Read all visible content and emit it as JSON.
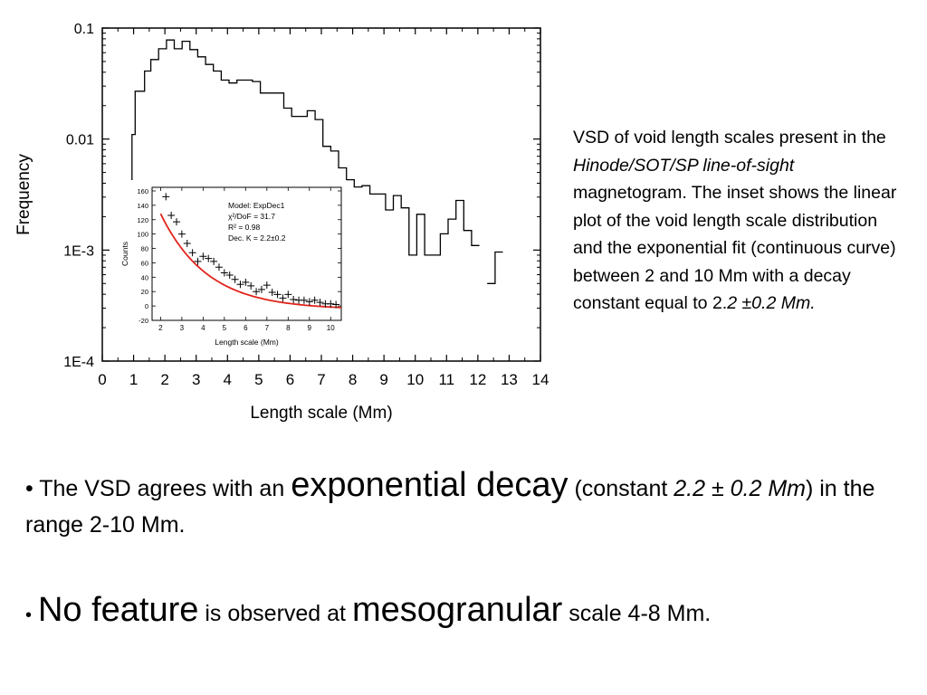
{
  "chart_data": [
    {
      "type": "line",
      "style": "step histogram",
      "xlabel": "Length scale (Mm)",
      "ylabel": "Frequency",
      "y_scale": "log",
      "xlim": [
        0,
        14
      ],
      "ylim": [
        0.0001,
        0.1
      ],
      "x_ticks": [
        "0",
        "1",
        "2",
        "3",
        "4",
        "5",
        "6",
        "7",
        "8",
        "9",
        "10",
        "11",
        "12",
        "13",
        "14"
      ],
      "y_ticks": [
        "0.1",
        "0.01",
        "1E-3",
        "1E-4"
      ],
      "grid": false,
      "bin_edges": [
        0.7,
        0.95,
        1.05,
        1.35,
        1.55,
        1.8,
        2.05,
        2.3,
        2.55,
        2.8,
        3.05,
        3.3,
        3.55,
        3.8,
        4.05,
        4.3,
        4.55,
        4.8,
        5.05,
        5.3,
        5.55,
        5.8,
        6.05,
        6.3,
        6.55,
        6.8,
        7.05,
        7.3,
        7.55,
        7.8,
        8.05,
        8.3,
        8.55,
        8.8,
        9.05,
        9.3,
        9.55,
        9.8,
        10.05,
        10.3,
        10.55,
        10.8,
        11.05,
        11.3,
        11.55,
        11.8,
        12.05,
        12.3,
        12.55,
        12.8
      ],
      "values": [
        0.0021,
        0.011,
        0.027,
        0.041,
        0.052,
        0.065,
        0.078,
        0.065,
        0.076,
        0.064,
        0.055,
        0.047,
        0.041,
        0.034,
        0.032,
        0.034,
        0.034,
        0.033,
        0.026,
        0.026,
        0.026,
        0.019,
        0.016,
        0.016,
        0.018,
        0.015,
        0.0086,
        0.0078,
        0.0055,
        0.0043,
        0.0037,
        0.0038,
        0.0032,
        0.0032,
        0.0023,
        0.0031,
        0.0024,
        0.0009,
        0.0021,
        0.0009,
        0.0009,
        0.0014,
        0.0019,
        0.0028,
        0.0015,
        0.0011,
        null,
        0.0005,
        0.00096
      ]
    },
    {
      "type": "scatter",
      "inset": true,
      "xlabel": "Length scale (Mm)",
      "ylabel": "Counts",
      "xlim": [
        1.6,
        10.5
      ],
      "ylim": [
        -20,
        165
      ],
      "x_ticks": [
        "2",
        "3",
        "4",
        "5",
        "6",
        "7",
        "8",
        "9",
        "10"
      ],
      "y_ticks": [
        "160",
        "140",
        "120",
        "100",
        "80",
        "60",
        "40",
        "20",
        "0",
        "-20"
      ],
      "grid": false,
      "legend_lines": [
        "Model: ExpDec1",
        "χ²/DoF = 31.7",
        "R² = 0.98",
        "Dec. K = 2.2±0.2"
      ],
      "points": [
        [
          2.25,
          152
        ],
        [
          2.5,
          126
        ],
        [
          2.75,
          117
        ],
        [
          3.0,
          100
        ],
        [
          3.25,
          87
        ],
        [
          3.5,
          74
        ],
        [
          3.75,
          62
        ],
        [
          4.0,
          69
        ],
        [
          4.25,
          66
        ],
        [
          4.5,
          62
        ],
        [
          4.75,
          54
        ],
        [
          5.0,
          46
        ],
        [
          5.25,
          43
        ],
        [
          5.5,
          37
        ],
        [
          5.75,
          30
        ],
        [
          6.0,
          33
        ],
        [
          6.25,
          28
        ],
        [
          6.5,
          20
        ],
        [
          6.75,
          23
        ],
        [
          7.0,
          29
        ],
        [
          7.25,
          19
        ],
        [
          7.5,
          16
        ],
        [
          7.75,
          11
        ],
        [
          8.0,
          16
        ],
        [
          8.25,
          9
        ],
        [
          8.5,
          8
        ],
        [
          8.75,
          8
        ],
        [
          9.0,
          6
        ],
        [
          9.25,
          8
        ],
        [
          9.5,
          5
        ],
        [
          9.75,
          3
        ],
        [
          10.0,
          3
        ],
        [
          10.25,
          2
        ]
      ],
      "fit": {
        "model": "ExpDec1",
        "A": 210,
        "t": 2.2,
        "y0": -5,
        "x_range": [
          2.0,
          10.5
        ],
        "color": "#e2231a"
      }
    }
  ],
  "caption": {
    "t1": "VSD of void length scales present in the ",
    "t2": "Hinode/SOT/SP line-of-sight",
    "t3": "  magnetogram. The inset shows the linear plot of the void length scale distribution and the exponential fit (continuous curve) between 2 and 10 Mm with a decay constant equal to 2.",
    "t4": "2 ±0.2 Mm."
  },
  "bullet1": {
    "dot": "•",
    "a": " The VSD agrees with an ",
    "b": "exponential decay",
    "c": " (constant ",
    "d": "2.2 ± 0.2 Mm",
    "e": ") in the range 2-10 Mm."
  },
  "bullet2": {
    "dot": "•",
    "a": " ",
    "b": "No feature",
    "c": " is observed at ",
    "d": "mesogranular",
    "e": " scale 4-8 Mm."
  }
}
